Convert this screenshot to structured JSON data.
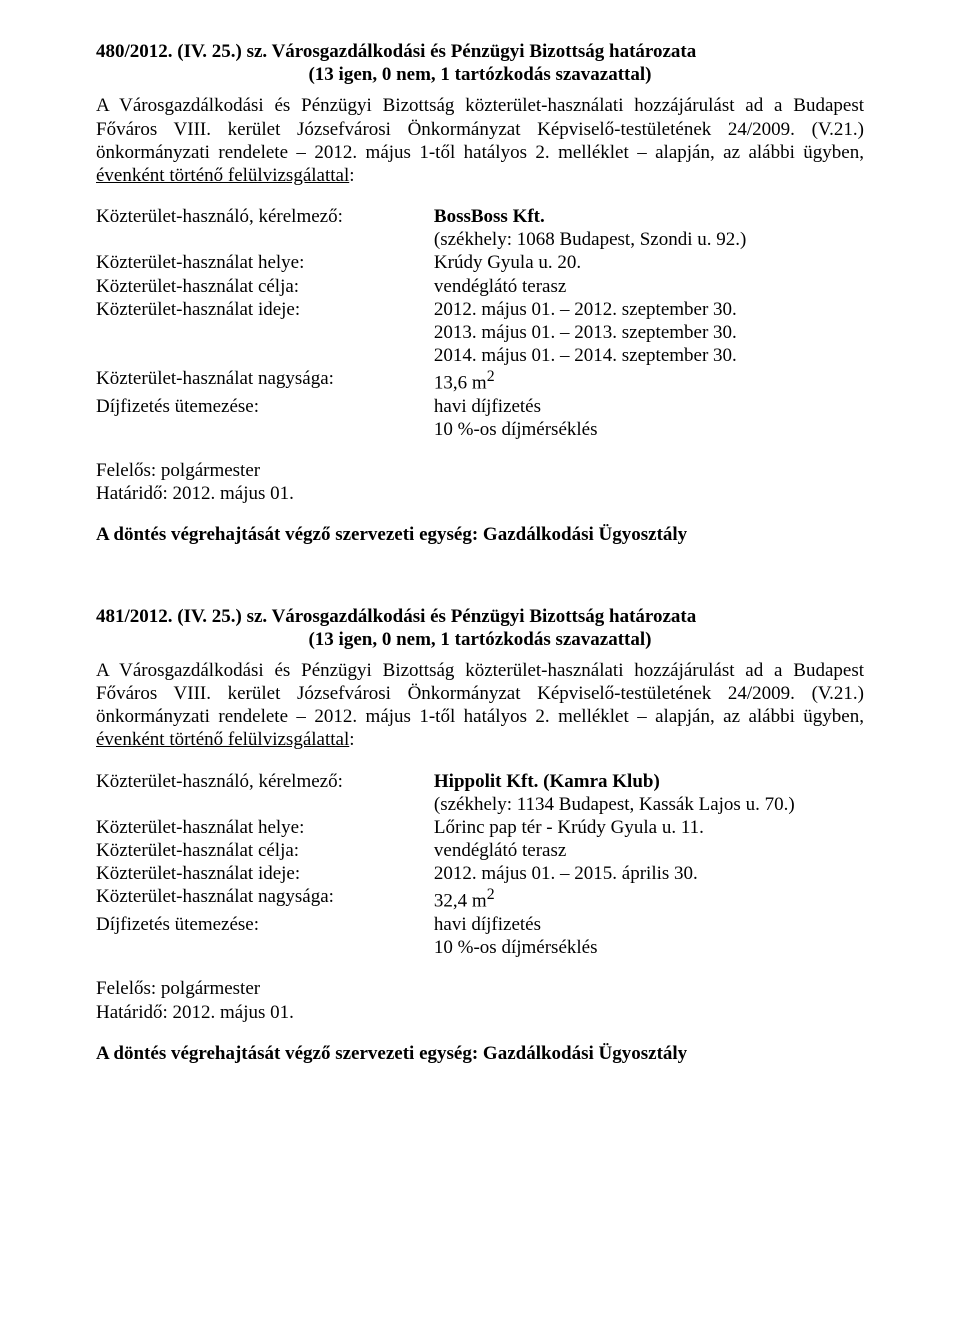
{
  "section1": {
    "ref": "480/2012. (IV. 25.) sz. Városgazdálkodási és Pénzügyi Bizottság határozata",
    "vote": "(13 igen, 0 nem, 1 tartózkodás szavazattal)",
    "intro_part1": "A Városgazdálkodási és Pénzügyi Bizottság közterület-használati hozzájárulást ad a Budapest Főváros VIII. kerület Józsefvárosi Önkormányzat Képviselő-testületének 24/2009. (V.21.) önkormányzati rendelete – 2012. május 1-től hatályos 2. melléklet – alapján, az alábbi ügyben, ",
    "intro_underlined": "évenként történő felülvizsgálattal",
    "rows": [
      {
        "label": "Közterület-használó, kérelmező:",
        "value_lines": [
          "BossBoss Kft.",
          "(székhely: 1068 Budapest, Szondi u. 92.)"
        ],
        "bold_first": true
      },
      {
        "label": "Közterület-használat helye:",
        "value_lines": [
          "Krúdy Gyula u. 20."
        ]
      },
      {
        "label": "Közterület-használat célja:",
        "value_lines": [
          "vendéglátó terasz"
        ]
      },
      {
        "label": "Közterület-használat ideje:",
        "value_lines": [
          "2012. május 01. – 2012. szeptember 30.",
          "2013. május 01. – 2013. szeptember 30.",
          "2014. május 01. – 2014. szeptember 30."
        ]
      },
      {
        "label": "Közterület-használat nagysága:",
        "value_lines": [
          "13,6 m"
        ],
        "sup": "2"
      },
      {
        "label": "Díjfizetés ütemezése:",
        "value_lines": [
          "havi díjfizetés",
          "10 %-os díjmérséklés"
        ]
      }
    ],
    "responsible": "Felelős: polgármester",
    "deadline": "Határidő: 2012. május 01.",
    "exec": "A döntés végrehajtását végző szervezeti egység: Gazdálkodási Ügyosztály"
  },
  "section2": {
    "ref": "481/2012. (IV. 25.) sz. Városgazdálkodási és Pénzügyi Bizottság határozata",
    "vote": "(13 igen, 0 nem, 1 tartózkodás szavazattal)",
    "intro_part1": "A Városgazdálkodási és Pénzügyi Bizottság közterület-használati hozzájárulást ad a Budapest Főváros VIII. kerület Józsefvárosi Önkormányzat Képviselő-testületének 24/2009. (V.21.) önkormányzati rendelete – 2012. május 1-től hatályos 2. melléklet – alapján, az alábbi ügyben, ",
    "intro_underlined": "évenként történő felülvizsgálattal",
    "rows": [
      {
        "label": "Közterület-használó, kérelmező:",
        "value_lines": [
          "Hippolit Kft. (Kamra Klub)",
          "(székhely: 1134 Budapest, Kassák Lajos u. 70.)"
        ],
        "bold_first": true
      },
      {
        "label": "Közterület-használat helye:",
        "value_lines": [
          "Lőrinc pap tér - Krúdy Gyula u. 11."
        ]
      },
      {
        "label": "Közterület-használat célja:",
        "value_lines": [
          "vendéglátó terasz"
        ]
      },
      {
        "label": "Közterület-használat ideje:",
        "value_lines": [
          "2012. május 01. – 2015. április 30."
        ]
      },
      {
        "label": "Közterület-használat nagysága:",
        "value_lines": [
          "32,4 m"
        ],
        "sup": "2"
      },
      {
        "label": "Díjfizetés ütemezése:",
        "value_lines": [
          "havi díjfizetés",
          "10 %-os díjmérséklés"
        ]
      }
    ],
    "responsible": "Felelős: polgármester",
    "deadline": "Határidő: 2012. május 01.",
    "exec": "A döntés végrehajtását végző szervezeti egység: Gazdálkodási Ügyosztály"
  }
}
